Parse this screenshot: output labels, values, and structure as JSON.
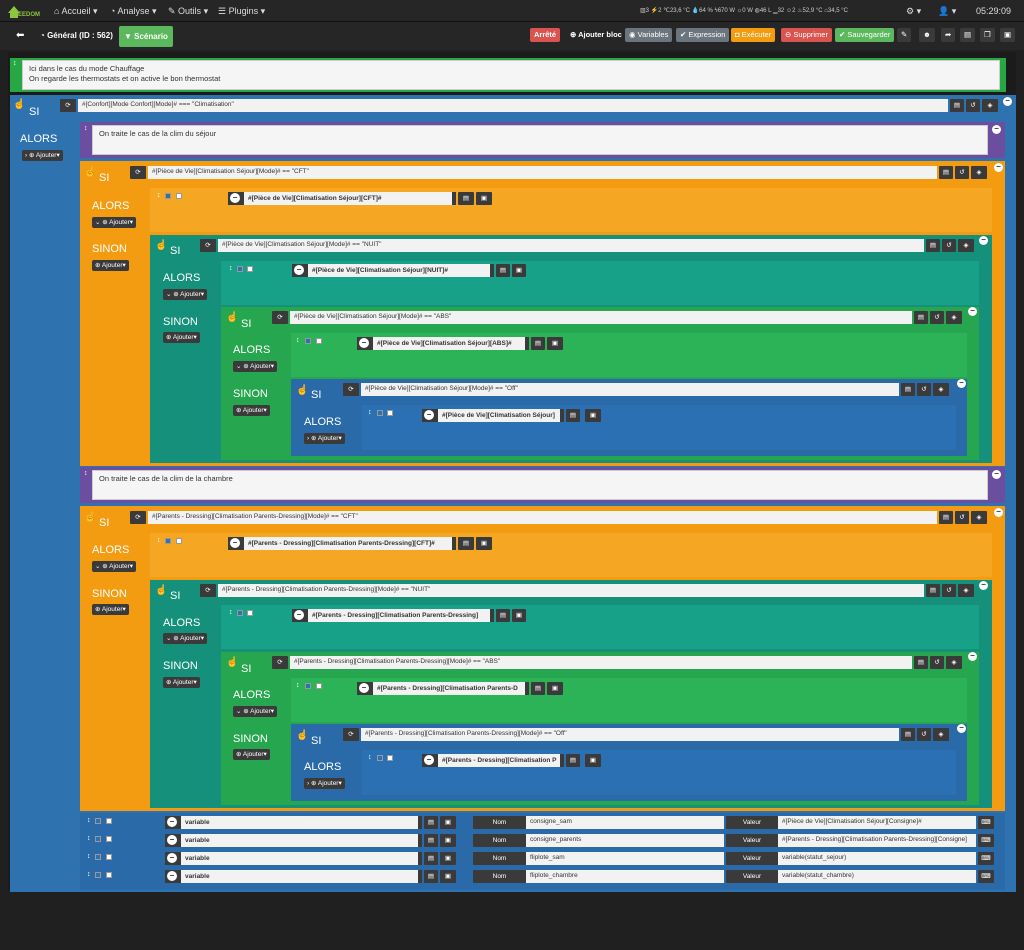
{
  "nav": {
    "logo": "EEDOM",
    "menu": [
      "Accueil",
      "Analyse",
      "Outils",
      "Plugins"
    ],
    "stats": [
      "3",
      "2",
      "23,6 °C",
      "64 %",
      "670 W",
      "0 W",
      "46 L",
      "32",
      "2",
      "52,9 °C",
      "34,5 °C"
    ],
    "clock": "05:29:09"
  },
  "toolbar": {
    "title": "Général (ID : 562)",
    "scenario": "Scénario",
    "status": "Arrêté",
    "add_block": "Ajouter bloc",
    "variables": "Variables",
    "expression": "Expression",
    "execute": "Exécuter",
    "delete": "Supprimer",
    "save": "Sauvegarder"
  },
  "comments": {
    "top1": "Ici dans le cas du mode Chauffage",
    "top2": "On regarde les thermostats et on active le bon thermostat",
    "salon": "On traite le cas de la clim du séjour",
    "chambre": "On traite le cas de la clim de la chambre"
  },
  "labels": {
    "si": "SI",
    "alors": "ALORS",
    "sinon": "SINON",
    "ajouter": "Ajouter"
  },
  "conditions": {
    "main": "#[Confort][Mode Confort][Mode]# === \"Climatisation\"",
    "s_cft": "#[Pièce de Vie][Climatisation Séjour][Mode]# == \"CFT\"",
    "s_nuit": "#[Pièce de Vie][Climatisation Séjour][Mode]# == \"NUIT\"",
    "s_abs": "#[Pièce de Vie][Climatisation Séjour][Mode]# == \"ABS\"",
    "s_off": "#[Pièce de Vie][Climatisation Séjour][Mode]# == \"Off\"",
    "p_cft": "#[Parents - Dressing][Climatisation Parents-Dressing][Mode]# == \"CFT\"",
    "p_nuit": "#[Parents - Dressing][Climatisation Parents-Dressing][Mode]# == \"NUIT\"",
    "p_abs": "#[Parents - Dressing][Climatisation Parents-Dressing][Mode]# == \"ABS\"",
    "p_off": "#[Parents - Dressing][Climatisation Parents-Dressing][Mode]# == \"Off\""
  },
  "actions": {
    "s_cft": "#[Pièce de Vie][Climatisation Séjour][CFT]#",
    "s_nuit": "#[Pièce de Vie][Climatisation Séjour][NUIT]#",
    "s_abs": "#[Pièce de Vie][Climatisation Séjour][ABS]#",
    "s_off": "#[Pièce de Vie][Climatisation Séjour]",
    "p_cft": "#[Parents - Dressing][Climatisation Parents-Dressing][CFT]#",
    "p_nuit": "#[Parents - Dressing][Climatisation Parents-Dressing]",
    "p_abs": "#[Parents - Dressing][Climatisation Parents-D",
    "p_off": "#[Parents - Dressing][Climatisation P"
  },
  "vars": {
    "action": "variable",
    "nom": "Nom",
    "valeur": "Valeur",
    "rows": [
      {
        "name": "consigne_sam",
        "value": "#[Pièce de Vie][Climatisation Séjour][Consigne]#"
      },
      {
        "name": "consigne_parents",
        "value": "#[Parents - Dressing][Climatisation Parents-Dressing][Consigne]"
      },
      {
        "name": "fliplote_sam",
        "value": "variable(statut_sejour)"
      },
      {
        "name": "fliplote_chambre",
        "value": "variable(statut_chambre)"
      }
    ]
  }
}
